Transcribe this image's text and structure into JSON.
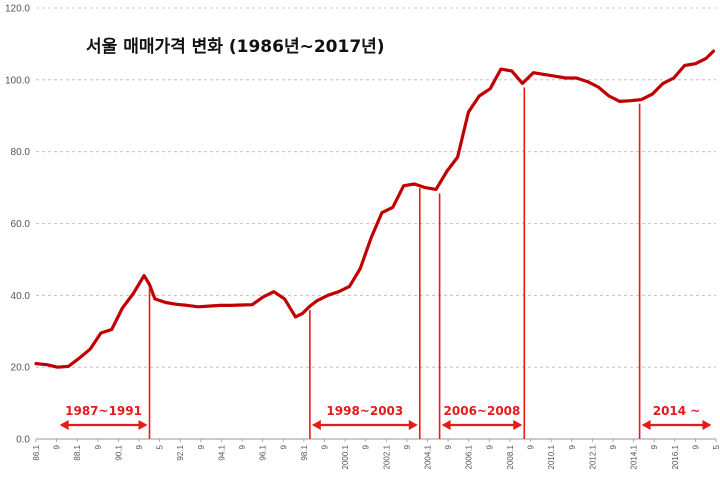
{
  "chart_data": {
    "type": "line",
    "title": "서울 매매가격 변화 (1986년~2017년)",
    "xlabel": "",
    "ylabel": "",
    "ylim": [
      0,
      120
    ],
    "yticks": [
      "0.0",
      "20.0",
      "40.0",
      "60.0",
      "80.0",
      "100.0",
      "120.0"
    ],
    "xticks": [
      "86.1",
      "9",
      "88.1",
      "9",
      "90.1",
      "9",
      "5",
      "92.1",
      "9",
      "94.1",
      "9",
      "96.1",
      "9",
      "98.1",
      "9",
      "2000.1",
      "9",
      "2002.1",
      "9",
      "2004.1",
      "9",
      "2006.1",
      "9",
      "2008.1",
      "9",
      "2010.1",
      "9",
      "2012.1",
      "9",
      "2014.1",
      "9",
      "2016.1",
      "9",
      "5"
    ],
    "grid": "horizontal-dashed",
    "color": "#c00000",
    "x": [
      "1986.1",
      "1986.7",
      "1987.1",
      "1987.7",
      "1988.1",
      "1988.7",
      "1989.1",
      "1989.7",
      "1990.1",
      "1990.7",
      "1991.1",
      "1991.4",
      "1991.7",
      "1992.1",
      "1992.7",
      "1993.1",
      "1993.7",
      "1994.1",
      "1994.7",
      "1995.1",
      "1995.7",
      "1996.1",
      "1996.7",
      "1997.1",
      "1997.7",
      "1998.1",
      "1998.5",
      "1998.9",
      "1999.1",
      "1999.7",
      "2000.1",
      "2000.7",
      "2001.1",
      "2001.7",
      "2002.1",
      "2002.7",
      "2003.1",
      "2003.7",
      "2004.1",
      "2004.7",
      "2005.1",
      "2005.7",
      "2006.1",
      "2006.7",
      "2007.1",
      "2007.7",
      "2008.1",
      "2008.7",
      "2009.1",
      "2009.7",
      "2010.1",
      "2010.7",
      "2011.1",
      "2011.7",
      "2012.1",
      "2012.7",
      "2013.1",
      "2013.7",
      "2014.1",
      "2014.7",
      "2015.1",
      "2015.7",
      "2016.1",
      "2016.7",
      "2017.1",
      "2017.5"
    ],
    "values": [
      21.0,
      20.7,
      20.0,
      20.2,
      22.5,
      25.0,
      29.5,
      30.5,
      36.5,
      40.5,
      45.5,
      43.0,
      39.0,
      38.0,
      37.5,
      37.2,
      36.8,
      37.0,
      37.2,
      37.2,
      37.3,
      37.4,
      39.5,
      41.0,
      39.0,
      34.0,
      35.0,
      37.0,
      38.5,
      40.0,
      41.0,
      42.5,
      47.5,
      56.0,
      63.0,
      64.5,
      70.5,
      71.0,
      70.0,
      69.5,
      74.5,
      78.5,
      91.0,
      95.5,
      97.5,
      103.0,
      102.5,
      99.0,
      102.0,
      101.5,
      101.0,
      100.5,
      100.5,
      99.5,
      98.0,
      95.5,
      94.0,
      94.2,
      94.5,
      96.0,
      99.0,
      100.5,
      104.0,
      104.5,
      106.0,
      108.0
    ],
    "annotations": [
      {
        "label": "1987~1991",
        "x_start": "1987.1",
        "x_end": "1991.4",
        "line_at": [
          "1991.4"
        ],
        "arrow": "both"
      },
      {
        "label": "1998~2003",
        "x_start": "1998.9",
        "x_end": "2003.10",
        "line_at": [
          "1998.9",
          "2003.10"
        ],
        "arrow": "both"
      },
      {
        "label": "2006~2008",
        "x_start": "2004.9",
        "x_end": "2008.8",
        "line_at": [
          "2004.9",
          "2008.8"
        ],
        "arrow": "both"
      },
      {
        "label": "2014 ~",
        "x_start": "2013.12",
        "x_end": "2017.5",
        "line_at": [
          "2013.12"
        ],
        "arrow": "both"
      }
    ]
  }
}
